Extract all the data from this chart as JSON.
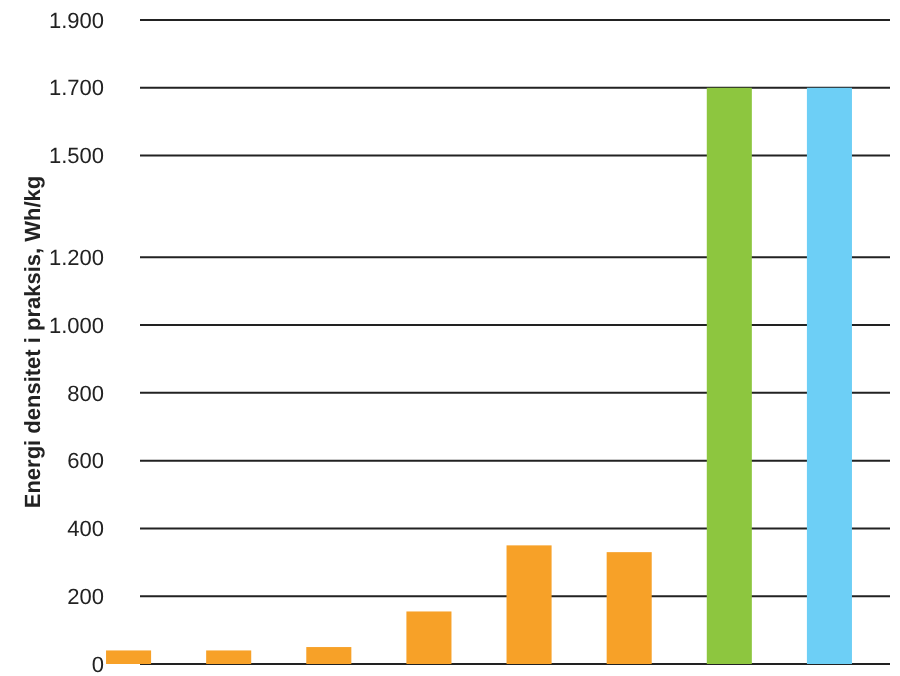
{
  "chart_data": {
    "type": "bar",
    "ylabel": "Energi densitet i praksis, Wh/kg",
    "categories": [
      null,
      null,
      null,
      null,
      null,
      null,
      null,
      null
    ],
    "values": [
      40,
      40,
      50,
      155,
      350,
      330,
      1700,
      1700
    ],
    "colors": [
      "#f7a128",
      "#f7a128",
      "#f7a128",
      "#f7a128",
      "#f7a128",
      "#f7a128",
      "#8dc63f",
      "#6dcff6"
    ],
    "ylim": [
      0,
      1900
    ],
    "yticks": [
      0,
      200,
      400,
      600,
      800,
      {
        "value": 1000,
        "label": "1.000"
      },
      {
        "value": 1200,
        "label": "1.200"
      },
      {
        "value": 1500,
        "label": "1.500"
      },
      {
        "value": 1700,
        "label": "1.700"
      },
      {
        "value": 1900,
        "label": "1.900"
      }
    ],
    "grid": "y"
  }
}
